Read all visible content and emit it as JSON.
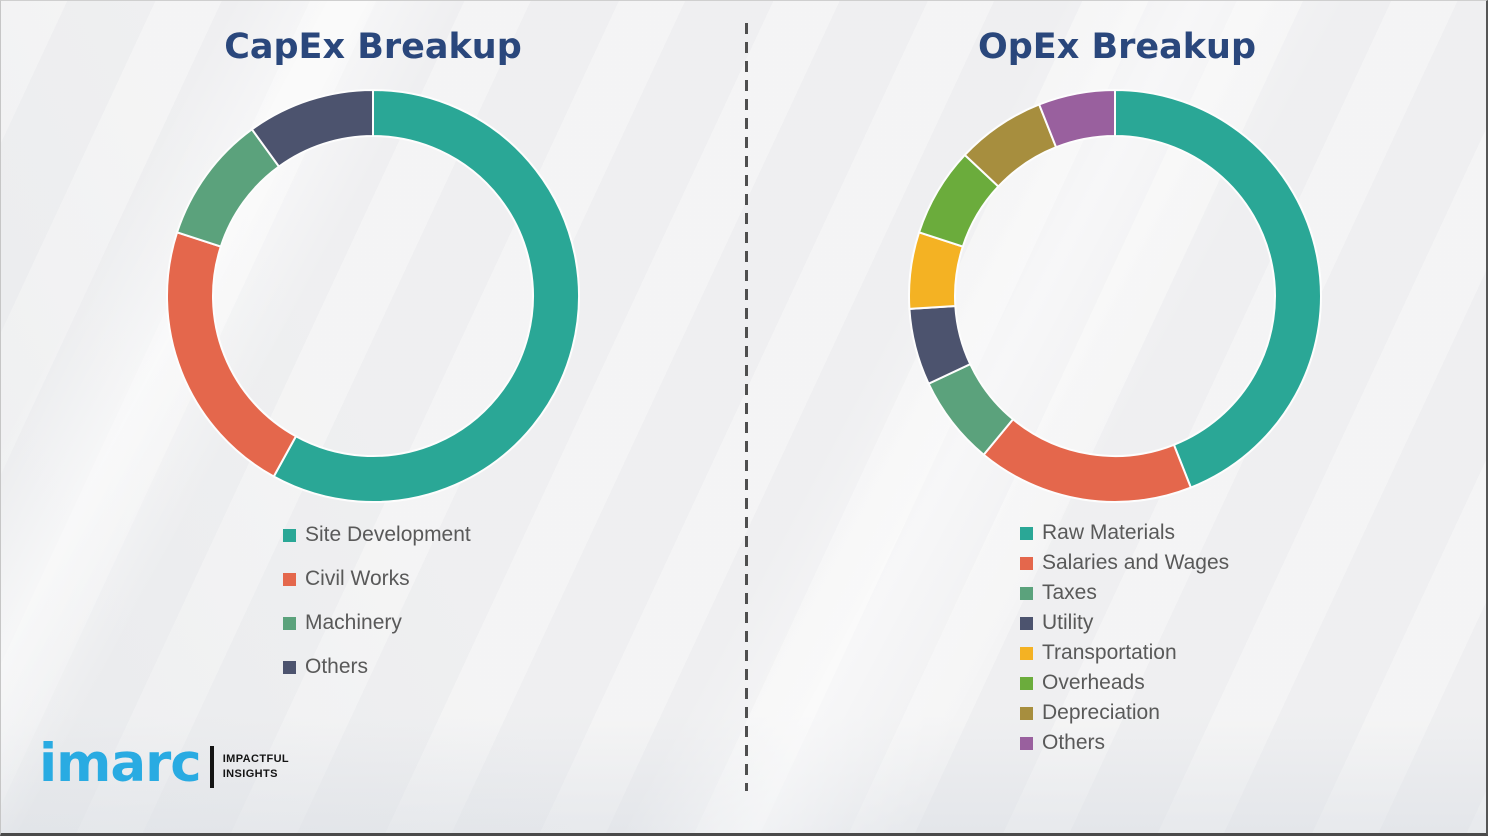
{
  "page": {
    "background_color": "#f1f1f2",
    "divider_style": "vertical-dashed",
    "divider_color": "#4f4f4f",
    "title_color": "#2a477c",
    "legend_text_color": "#595959"
  },
  "logo": {
    "brand": "imarc",
    "brand_color": "#29abe2",
    "tagline_line1": "IMPACTFUL",
    "tagline_line2": "INSIGHTS"
  },
  "chart_data": [
    {
      "type": "pie",
      "donut": true,
      "title": "CapEx Breakup",
      "categories": [
        "Site Development",
        "Civil Works",
        "Machinery",
        "Others"
      ],
      "values": [
        58,
        22,
        10,
        10
      ],
      "value_unit": "% share (estimated from arc angles; no numeric labels shown)",
      "colors": [
        "#2aa796",
        "#e4674c",
        "#5ba27c",
        "#4c536e"
      ],
      "start_angle_deg": 0,
      "direction": "clockwise",
      "legend_position": "below-left",
      "grid": false
    },
    {
      "type": "pie",
      "donut": true,
      "title": "OpEx Breakup",
      "categories": [
        "Raw Materials",
        "Salaries and Wages",
        "Taxes",
        "Utility",
        "Transportation",
        "Overheads",
        "Depreciation",
        "Others"
      ],
      "values": [
        44,
        17,
        7,
        6,
        6,
        7,
        7,
        6
      ],
      "value_unit": "% share (estimated from arc angles; no numeric labels shown)",
      "colors": [
        "#2aa796",
        "#e4674c",
        "#5ba27c",
        "#4c536e",
        "#f4b223",
        "#6bac3c",
        "#a78e3e",
        "#99609e"
      ],
      "start_angle_deg": 0,
      "direction": "clockwise",
      "legend_position": "below-left",
      "grid": false
    }
  ]
}
